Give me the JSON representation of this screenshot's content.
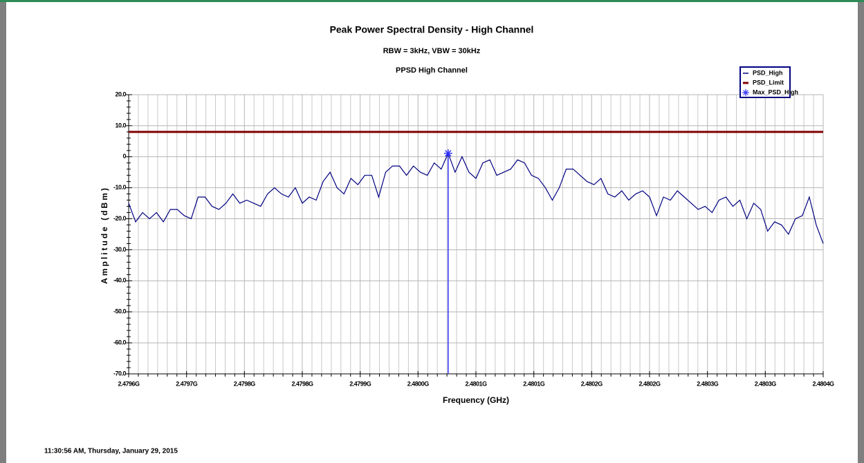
{
  "chart_data": {
    "type": "line",
    "title": "Peak Power Spectral Density - High Channel",
    "subtitle": "RBW = 3kHz, VBW = 30kHz",
    "chart_name": "PPSD High Channel",
    "x_label": "Frequency (GHz)",
    "y_label": "Amplitude (dBm)",
    "footer": "11:30:56 AM, Thursday, January 29, 2015",
    "xlim": [
      2.4796,
      2.4804
    ],
    "xticks": [
      {
        "value": 2.4796,
        "label": "2.4796G"
      },
      {
        "value": 2.4796667,
        "label": "2.4797G"
      },
      {
        "value": 2.4797333,
        "label": "2.4798G"
      },
      {
        "value": 2.4798,
        "label": "2.4798G"
      },
      {
        "value": 2.4798667,
        "label": "2.4799G"
      },
      {
        "value": 2.4799333,
        "label": "2.4800G"
      },
      {
        "value": 2.48,
        "label": "2.4801G"
      },
      {
        "value": 2.4800667,
        "label": "2.4801G"
      },
      {
        "value": 2.4801333,
        "label": "2.4802G"
      },
      {
        "value": 2.4802,
        "label": "2.4802G"
      },
      {
        "value": 2.4802667,
        "label": "2.4803G"
      },
      {
        "value": 2.4803333,
        "label": "2.4803G"
      },
      {
        "value": 2.4804,
        "label": "2.4804G"
      }
    ],
    "ylim": [
      -70,
      20
    ],
    "yticks": [
      {
        "value": 20,
        "label": "20.0"
      },
      {
        "value": 10,
        "label": "10.0"
      },
      0,
      {
        "value": -10,
        "label": "-10.0"
      },
      {
        "value": -20,
        "label": "-20.0"
      },
      {
        "value": -30,
        "label": "-30.0"
      },
      {
        "value": -40,
        "label": "-40.0"
      },
      {
        "value": -50,
        "label": "-50.0"
      },
      {
        "value": -60,
        "label": "-60.0"
      },
      {
        "value": -70,
        "label": "-70.0"
      }
    ],
    "grid": true,
    "legend": "upper right",
    "series": [
      {
        "name": "PSD_High",
        "color": "#000080",
        "x": [
          2.4796,
          2.479608,
          2.479616,
          2.479624,
          2.479632,
          2.47964,
          2.479648,
          2.479656,
          2.479664,
          2.479672,
          2.47968,
          2.479688,
          2.479696,
          2.479704,
          2.479712,
          2.47972,
          2.479728,
          2.479736,
          2.479744,
          2.479752,
          2.47976,
          2.479768,
          2.479776,
          2.479784,
          2.479792,
          2.4798,
          2.479808,
          2.479816,
          2.479824,
          2.479832,
          2.47984,
          2.479848,
          2.479856,
          2.479864,
          2.479872,
          2.47988,
          2.479888,
          2.479896,
          2.479904,
          2.479912,
          2.47992,
          2.479928,
          2.479936,
          2.479944,
          2.479952,
          2.47996,
          2.479968,
          2.479976,
          2.479984,
          2.479992,
          2.48,
          2.480008,
          2.480016,
          2.480024,
          2.480032,
          2.48004,
          2.480048,
          2.480056,
          2.480064,
          2.480072,
          2.48008,
          2.480088,
          2.480096,
          2.480104,
          2.480112,
          2.48012,
          2.480128,
          2.480136,
          2.480144,
          2.480152,
          2.48016,
          2.480168,
          2.480176,
          2.480184,
          2.480192,
          2.4802,
          2.480208,
          2.480216,
          2.480224,
          2.480232,
          2.48024,
          2.480248,
          2.480256,
          2.480264,
          2.480272,
          2.48028,
          2.480288,
          2.480296,
          2.480304,
          2.480312,
          2.48032,
          2.480328,
          2.480336,
          2.480344,
          2.480352,
          2.48036,
          2.480368,
          2.480376,
          2.480384,
          2.480392,
          2.4804
        ],
        "values": [
          -15,
          -21,
          -18,
          -20,
          -18,
          -21,
          -17,
          -17,
          -19,
          -20,
          -13,
          -13,
          -16,
          -17,
          -15,
          -12,
          -15,
          -14,
          -15,
          -16,
          -12,
          -10,
          -12,
          -13,
          -10,
          -15,
          -13,
          -14,
          -8,
          -5,
          -10,
          -12,
          -7,
          -9,
          -6,
          -6,
          -13,
          -5,
          -3,
          -3,
          -6,
          -3,
          -5,
          -6,
          -2,
          -4,
          1.1,
          -5,
          0,
          -5,
          -7,
          -2,
          -1,
          -6,
          -5,
          -4,
          -1,
          -2,
          -6,
          -7,
          -10,
          -14,
          -10,
          -4,
          -4,
          -6,
          -8,
          -9,
          -7,
          -12,
          -13,
          -11,
          -14,
          -12,
          -11,
          -13,
          -19,
          -13,
          -14,
          -11,
          -13,
          -15,
          -17,
          -16,
          -18,
          -14,
          -13,
          -16,
          -14,
          -20,
          -15,
          -17,
          -24,
          -21,
          -22,
          -25,
          -20,
          -19,
          -13,
          -22,
          -28
        ]
      },
      {
        "name": "PSD_Limit",
        "color": "#800000",
        "x": [
          2.4796,
          2.4804
        ],
        "values": [
          8,
          8
        ]
      },
      {
        "name": "Max_PSD_High",
        "color": "#3333ff",
        "x": [
          2.479968
        ],
        "values": [
          1.1
        ]
      }
    ]
  }
}
